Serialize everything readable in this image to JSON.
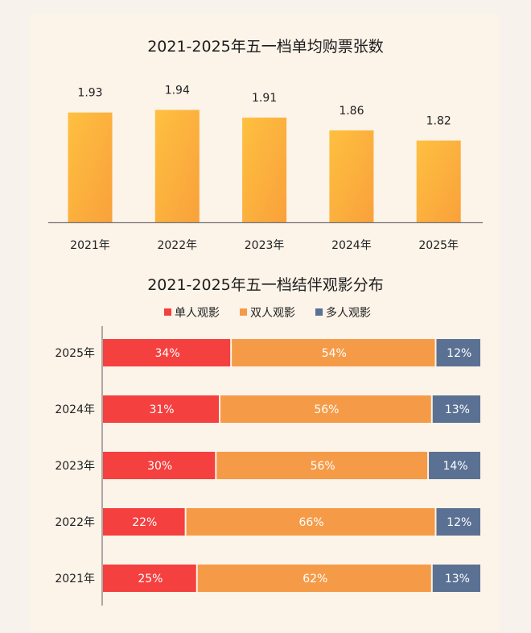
{
  "chart_data": [
    {
      "type": "bar",
      "title": "2021-2025年五一档单均购票张数",
      "categories": [
        "2021年",
        "2022年",
        "2023年",
        "2024年",
        "2025年"
      ],
      "values": [
        1.93,
        1.94,
        1.91,
        1.86,
        1.82
      ],
      "data_labels": [
        "1.93",
        "1.94",
        "1.91",
        "1.86",
        "1.82"
      ],
      "ylim": [
        1.5,
        2.0
      ],
      "grid": false,
      "colors": {
        "bar_top": "#fec040",
        "bar_bottom": "#f9a13b"
      }
    },
    {
      "type": "bar",
      "orientation": "horizontal",
      "stacked": true,
      "title": "2021-2025年五一档结伴观影分布",
      "categories": [
        "2025年",
        "2024年",
        "2023年",
        "2022年",
        "2021年"
      ],
      "legend_position": "top",
      "series": [
        {
          "name": "单人观影",
          "color": "#f4403f",
          "values": [
            34,
            31,
            30,
            22,
            25
          ],
          "labels": [
            "34%",
            "31%",
            "30%",
            "22%",
            "25%"
          ]
        },
        {
          "name": "双人观影",
          "color": "#f59b48",
          "values": [
            54,
            56,
            56,
            66,
            62
          ],
          "labels": [
            "54%",
            "56%",
            "56%",
            "66%",
            "62%"
          ]
        },
        {
          "name": "多人观影",
          "color": "#5a7193",
          "values": [
            12,
            13,
            14,
            12,
            13
          ],
          "labels": [
            "12%",
            "13%",
            "14%",
            "12%",
            "13%"
          ]
        }
      ],
      "xlim": [
        0,
        100
      ],
      "grid": false
    }
  ]
}
